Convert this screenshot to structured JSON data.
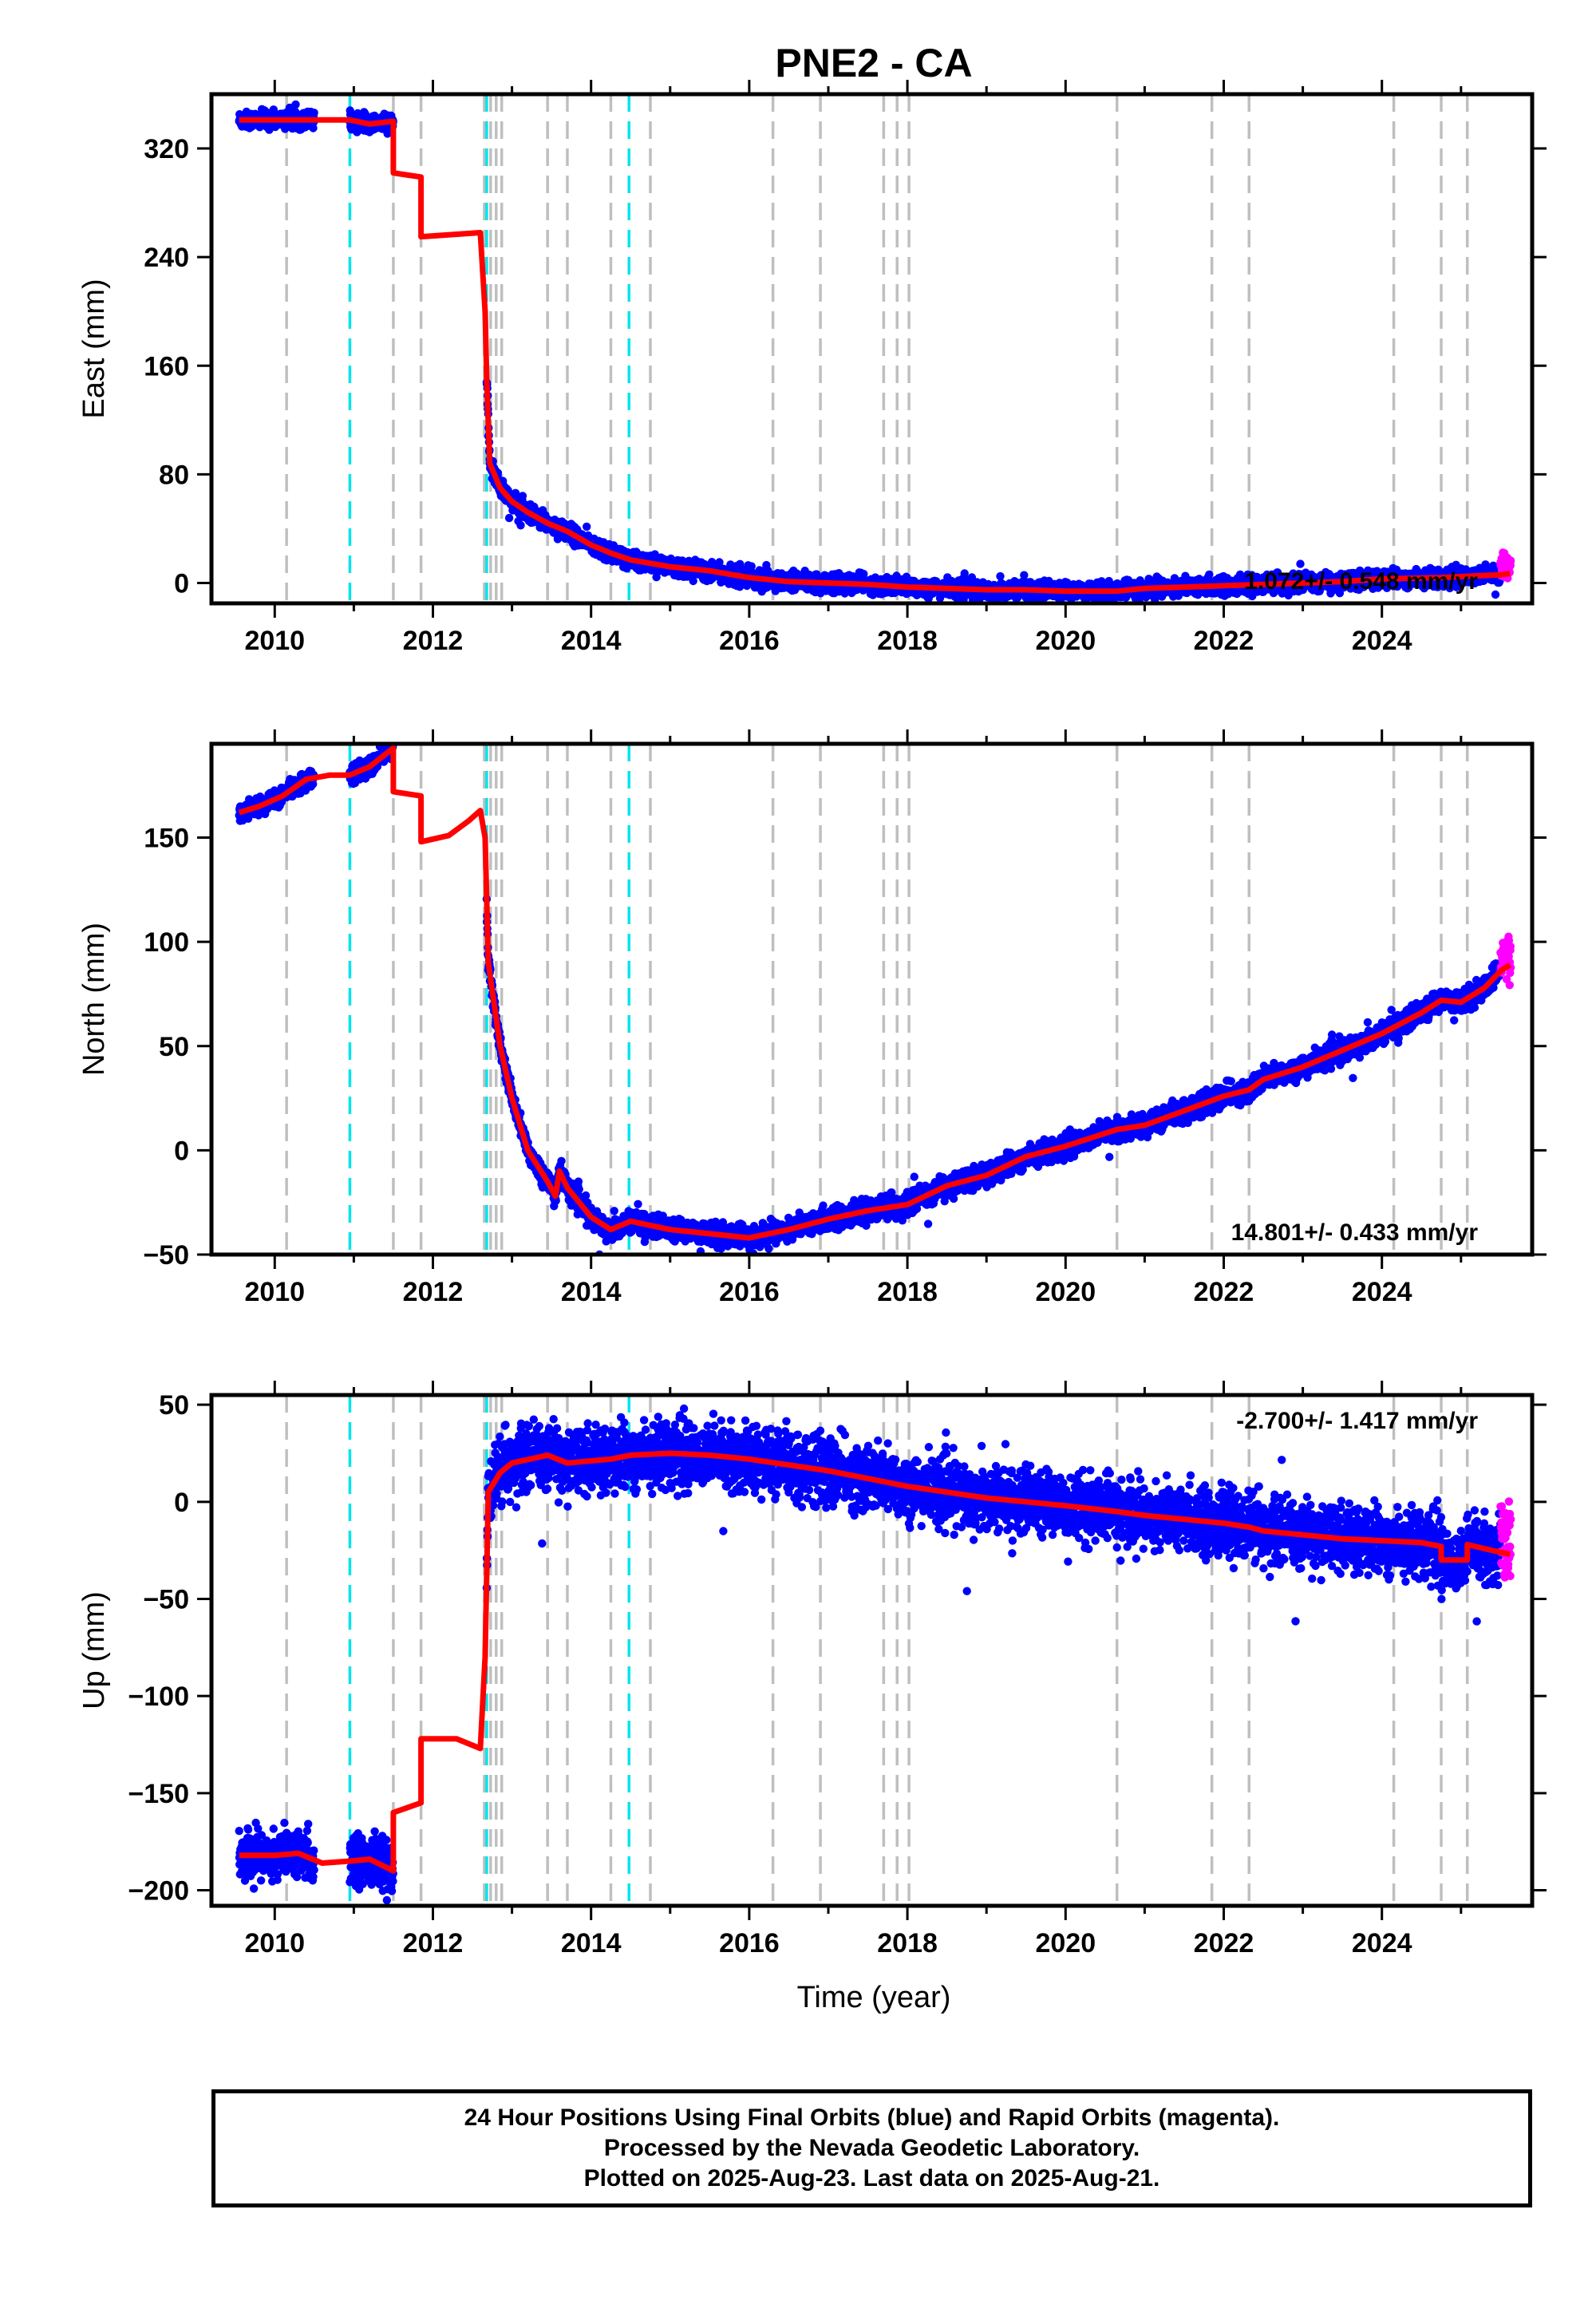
{
  "title": "PNE2 - CA",
  "xlabel": "Time (year)",
  "footer": {
    "line1": "24 Hour Positions Using Final Orbits (blue) and Rapid Orbits (magenta).",
    "line2": "Processed by the Nevada Geodetic Laboratory.",
    "line3": "Plotted on 2025-Aug-23. Last data on 2025-Aug-21."
  },
  "colors": {
    "final_orbits": "#0000ff",
    "rapid_orbits": "#ff00ff",
    "model": "#ff0000",
    "gray_event": "#bfbfbf",
    "cyan_event": "#00e5ee"
  },
  "chart_data": [
    {
      "type": "scatter",
      "component": "East",
      "ylabel": "East (mm)",
      "rate_text": "1.072+/- 0.548 mm/yr",
      "xlim": [
        2009.2,
        2025.9
      ],
      "ylim": [
        -15,
        360
      ],
      "yticks": [
        0,
        80,
        160,
        240,
        320
      ],
      "xticks": [
        2010,
        2012,
        2014,
        2016,
        2018,
        2020,
        2022,
        2024
      ],
      "gray_events": [
        2010.15,
        2011.5,
        2011.85,
        2012.65,
        2012.73,
        2012.8,
        2012.87,
        2013.45,
        2013.7,
        2014.25,
        2014.75,
        2016.3,
        2016.9,
        2017.7,
        2017.87,
        2018.02,
        2020.65,
        2021.85,
        2022.32,
        2024.15,
        2024.75,
        2025.08
      ],
      "cyan_events": [
        2010.95,
        2012.68,
        2014.48
      ],
      "model": [
        [
          2009.55,
          341
        ],
        [
          2010.95,
          341
        ],
        [
          2011.2,
          338
        ],
        [
          2011.5,
          340
        ],
        [
          2011.5,
          302
        ],
        [
          2011.85,
          299
        ],
        [
          2011.85,
          255
        ],
        [
          2012.6,
          258
        ],
        [
          2012.66,
          200
        ],
        [
          2012.68,
          150
        ],
        [
          2012.72,
          88
        ],
        [
          2012.85,
          70
        ],
        [
          2013.0,
          60
        ],
        [
          2013.2,
          52
        ],
        [
          2013.45,
          44
        ],
        [
          2013.7,
          38
        ],
        [
          2014.0,
          28
        ],
        [
          2014.25,
          22
        ],
        [
          2014.5,
          17
        ],
        [
          2015.0,
          12
        ],
        [
          2015.5,
          9
        ],
        [
          2016.0,
          4
        ],
        [
          2016.5,
          1
        ],
        [
          2017.0,
          0
        ],
        [
          2017.5,
          -1
        ],
        [
          2018.0,
          -3
        ],
        [
          2018.5,
          -4
        ],
        [
          2019.0,
          -5
        ],
        [
          2019.5,
          -5
        ],
        [
          2020.0,
          -6
        ],
        [
          2020.65,
          -6
        ],
        [
          2021.0,
          -4
        ],
        [
          2021.5,
          -3
        ],
        [
          2022.0,
          -2
        ],
        [
          2022.5,
          -1
        ],
        [
          2023.0,
          0
        ],
        [
          2023.5,
          1
        ],
        [
          2024.0,
          3
        ],
        [
          2024.75,
          4
        ],
        [
          2025.08,
          5
        ],
        [
          2025.5,
          6
        ],
        [
          2025.62,
          7
        ]
      ],
      "data_segments": [
        {
          "x0": 2009.55,
          "x1": 2010.5,
          "sd": 3
        },
        {
          "x0": 2010.95,
          "x1": 2011.5,
          "sd": 3
        },
        {
          "x0": 2012.68,
          "x1": 2025.5,
          "sd": 3
        }
      ],
      "rapid_segment": {
        "x0": 2025.5,
        "x1": 2025.63,
        "sd": 4
      }
    },
    {
      "type": "scatter",
      "component": "North",
      "ylabel": "North (mm)",
      "rate_text": "14.801+/- 0.433 mm/yr",
      "xlim": [
        2009.2,
        2025.9
      ],
      "ylim": [
        -50,
        195
      ],
      "yticks": [
        -50,
        0,
        50,
        100,
        150
      ],
      "xticks": [
        2010,
        2012,
        2014,
        2016,
        2018,
        2020,
        2022,
        2024
      ],
      "gray_events": [
        2010.15,
        2011.5,
        2011.85,
        2012.65,
        2012.73,
        2012.8,
        2012.87,
        2013.45,
        2013.7,
        2014.25,
        2014.75,
        2016.3,
        2016.9,
        2017.7,
        2017.87,
        2018.02,
        2020.65,
        2021.85,
        2022.32,
        2024.15,
        2024.75,
        2025.08
      ],
      "cyan_events": [
        2010.95,
        2012.68,
        2014.48
      ],
      "model": [
        [
          2009.55,
          162
        ],
        [
          2009.8,
          165
        ],
        [
          2010.1,
          170
        ],
        [
          2010.4,
          178
        ],
        [
          2010.7,
          180
        ],
        [
          2010.95,
          180
        ],
        [
          2011.2,
          184
        ],
        [
          2011.5,
          193
        ],
        [
          2011.5,
          172
        ],
        [
          2011.85,
          170
        ],
        [
          2011.85,
          148
        ],
        [
          2012.2,
          151
        ],
        [
          2012.45,
          158
        ],
        [
          2012.6,
          163
        ],
        [
          2012.66,
          150
        ],
        [
          2012.7,
          90
        ],
        [
          2012.85,
          50
        ],
        [
          2013.0,
          25
        ],
        [
          2013.2,
          0
        ],
        [
          2013.45,
          -15
        ],
        [
          2013.55,
          -22
        ],
        [
          2013.6,
          -10
        ],
        [
          2013.7,
          -18
        ],
        [
          2014.0,
          -32
        ],
        [
          2014.25,
          -38
        ],
        [
          2014.5,
          -34
        ],
        [
          2015.0,
          -38
        ],
        [
          2015.5,
          -40
        ],
        [
          2016.0,
          -42
        ],
        [
          2016.5,
          -38
        ],
        [
          2017.0,
          -33
        ],
        [
          2017.5,
          -29
        ],
        [
          2018.0,
          -26
        ],
        [
          2018.5,
          -17
        ],
        [
          2019.0,
          -12
        ],
        [
          2019.5,
          -3
        ],
        [
          2020.0,
          2
        ],
        [
          2020.65,
          10
        ],
        [
          2021.0,
          12
        ],
        [
          2021.5,
          19
        ],
        [
          2022.0,
          26
        ],
        [
          2022.32,
          29
        ],
        [
          2022.5,
          34
        ],
        [
          2023.0,
          40
        ],
        [
          2023.5,
          48
        ],
        [
          2024.0,
          56
        ],
        [
          2024.5,
          66
        ],
        [
          2024.75,
          72
        ],
        [
          2025.0,
          71
        ],
        [
          2025.3,
          78
        ],
        [
          2025.5,
          86
        ],
        [
          2025.62,
          89
        ]
      ],
      "data_segments": [
        {
          "x0": 2009.55,
          "x1": 2010.5,
          "sd": 2
        },
        {
          "x0": 2010.95,
          "x1": 2011.5,
          "sd": 2
        },
        {
          "x0": 2012.68,
          "x1": 2025.5,
          "sd": 2.5
        }
      ],
      "rapid_segment": {
        "x0": 2025.5,
        "x1": 2025.63,
        "sd": 5
      }
    },
    {
      "type": "scatter",
      "component": "Up",
      "ylabel": "Up (mm)",
      "rate_text": "-2.700+/- 1.417 mm/yr",
      "xlim": [
        2009.2,
        2025.9
      ],
      "ylim": [
        -208,
        55
      ],
      "yticks": [
        -200,
        -150,
        -100,
        -50,
        0,
        50
      ],
      "xticks": [
        2010,
        2012,
        2014,
        2016,
        2018,
        2020,
        2022,
        2024
      ],
      "gray_events": [
        2010.15,
        2011.5,
        2011.85,
        2012.65,
        2012.73,
        2012.8,
        2012.87,
        2013.45,
        2013.7,
        2014.25,
        2014.75,
        2016.3,
        2016.9,
        2017.7,
        2017.87,
        2018.02,
        2020.65,
        2021.85,
        2022.32,
        2024.15,
        2024.75,
        2025.08
      ],
      "cyan_events": [
        2010.95,
        2012.68,
        2014.48
      ],
      "model": [
        [
          2009.55,
          -182
        ],
        [
          2010.0,
          -182
        ],
        [
          2010.3,
          -181
        ],
        [
          2010.6,
          -186
        ],
        [
          2010.95,
          -185
        ],
        [
          2011.2,
          -184
        ],
        [
          2011.5,
          -190
        ],
        [
          2011.5,
          -160
        ],
        [
          2011.85,
          -155
        ],
        [
          2011.85,
          -122
        ],
        [
          2012.3,
          -122
        ],
        [
          2012.6,
          -127
        ],
        [
          2012.66,
          -80
        ],
        [
          2012.7,
          5
        ],
        [
          2012.85,
          15
        ],
        [
          2013.0,
          20
        ],
        [
          2013.45,
          24
        ],
        [
          2013.7,
          20
        ],
        [
          2014.25,
          22
        ],
        [
          2014.5,
          24
        ],
        [
          2015.0,
          25
        ],
        [
          2015.5,
          24
        ],
        [
          2016.0,
          22
        ],
        [
          2016.5,
          19
        ],
        [
          2017.0,
          16
        ],
        [
          2017.5,
          12
        ],
        [
          2018.0,
          8
        ],
        [
          2018.5,
          5
        ],
        [
          2019.0,
          2
        ],
        [
          2019.5,
          0
        ],
        [
          2020.0,
          -2
        ],
        [
          2020.65,
          -5
        ],
        [
          2021.0,
          -7
        ],
        [
          2021.5,
          -9
        ],
        [
          2022.0,
          -11
        ],
        [
          2022.32,
          -13
        ],
        [
          2022.5,
          -15
        ],
        [
          2023.0,
          -17
        ],
        [
          2023.5,
          -19
        ],
        [
          2024.0,
          -20
        ],
        [
          2024.5,
          -21
        ],
        [
          2024.75,
          -23
        ],
        [
          2024.75,
          -30
        ],
        [
          2025.08,
          -30
        ],
        [
          2025.08,
          -22
        ],
        [
          2025.5,
          -26
        ],
        [
          2025.62,
          -27
        ]
      ],
      "data_segments": [
        {
          "x0": 2009.55,
          "x1": 2010.5,
          "sd": 6
        },
        {
          "x0": 2010.95,
          "x1": 2011.5,
          "sd": 6
        },
        {
          "x0": 2012.68,
          "x1": 2025.5,
          "sd": 8
        }
      ],
      "rapid_segment": {
        "x0": 2025.5,
        "x1": 2025.63,
        "sd": 10
      }
    }
  ]
}
